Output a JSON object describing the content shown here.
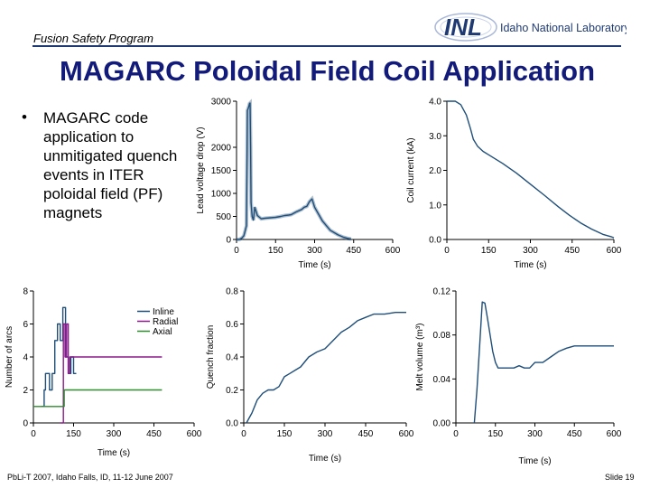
{
  "header": {
    "program": "Fusion Safety Program",
    "logo_text": "Idaho National Laboratory",
    "logo_mark": "INL"
  },
  "title": "MAGARC Poloidal Field Coil Application",
  "bullet": "MAGARC code application to unmitigated quench events in ITER poloidal field (PF) magnets",
  "footer": {
    "citation": "PbLi-T 2007, Idaho Falls, ID, 11-12 June 2007",
    "slide": "Slide 19"
  },
  "colors": {
    "title": "#121a7a",
    "series": "#1f4e79",
    "radial": "#8b1a8b",
    "axial": "#2e8b2e"
  },
  "chart_data": [
    {
      "id": "voltage",
      "type": "line",
      "ylabel": "Lead voltage drop (V)",
      "xlabel": "Time (s)",
      "xlim": [
        0,
        600
      ],
      "ylim": [
        0,
        3000
      ],
      "xticks": [
        "0",
        "150",
        "300",
        "450",
        "600"
      ],
      "yticks": [
        "0",
        "500",
        "1000",
        "1500",
        "2000",
        "3000"
      ],
      "series": [
        {
          "name": "Voltage",
          "color": "#1f4e79",
          "band": true,
          "x": [
            0,
            5,
            10,
            20,
            28,
            32,
            38,
            42,
            45,
            48,
            50,
            52,
            54,
            56,
            60,
            65,
            70,
            80,
            95,
            110,
            130,
            150,
            170,
            185,
            200,
            210,
            230,
            250,
            260,
            270,
            280,
            290,
            300,
            330,
            360,
            390,
            410,
            430,
            440
          ],
          "y": [
            0,
            0,
            0,
            30,
            80,
            160,
            300,
            2800,
            2850,
            2900,
            2950,
            2960,
            2000,
            800,
            500,
            420,
            700,
            520,
            450,
            460,
            470,
            480,
            500,
            520,
            530,
            540,
            600,
            650,
            700,
            720,
            820,
            880,
            700,
            400,
            200,
            100,
            50,
            20,
            10
          ]
        }
      ]
    },
    {
      "id": "current",
      "type": "line",
      "ylabel": "Coil current (kA)",
      "xlabel": "Time (s)",
      "xlim": [
        0,
        600
      ],
      "ylim": [
        0,
        4.0
      ],
      "xticks": [
        "0",
        "150",
        "300",
        "450",
        "600"
      ],
      "yticks": [
        "0.0",
        "1.0",
        "2.0",
        "3.0",
        "4.0"
      ],
      "series": [
        {
          "name": "Current",
          "color": "#1f4e79",
          "x": [
            0,
            30,
            50,
            70,
            85,
            95,
            110,
            130,
            150,
            200,
            250,
            300,
            350,
            400,
            440,
            480,
            520,
            560,
            590,
            600
          ],
          "y": [
            4.0,
            4.0,
            3.9,
            3.6,
            3.2,
            2.9,
            2.7,
            2.55,
            2.45,
            2.2,
            1.92,
            1.6,
            1.28,
            0.95,
            0.7,
            0.48,
            0.3,
            0.15,
            0.08,
            0.05
          ]
        }
      ]
    },
    {
      "id": "arcs",
      "type": "line",
      "ylabel": "Number of arcs",
      "xlabel": "Time (s)",
      "xlim": [
        0,
        600
      ],
      "ylim": [
        0,
        8
      ],
      "xticks": [
        "0",
        "150",
        "300",
        "450",
        "600"
      ],
      "yticks": [
        "0",
        "2",
        "4",
        "6",
        "8"
      ],
      "legend": [
        "Inline",
        "Radial",
        "Axial"
      ],
      "series": [
        {
          "name": "Inline",
          "color": "#1f4e79",
          "step": true,
          "x": [
            30,
            40,
            45,
            55,
            60,
            70,
            80,
            90,
            100,
            110,
            120,
            130,
            140,
            150,
            160
          ],
          "y": [
            1,
            2,
            3,
            3,
            2,
            3,
            5,
            6,
            5,
            7,
            4,
            3,
            4,
            3,
            3
          ]
        },
        {
          "name": "Radial",
          "color": "#8b1a8b",
          "step": true,
          "x": [
            100,
            112,
            118,
            124,
            130,
            136,
            150,
            480
          ],
          "y": [
            0,
            6,
            4,
            6,
            3,
            4,
            4,
            4
          ]
        },
        {
          "name": "Axial",
          "color": "#2e8b2e",
          "step": true,
          "x": [
            0,
            20,
            60,
            110,
            115,
            150,
            290,
            300,
            480
          ],
          "y": [
            1,
            1,
            1,
            1,
            2,
            2,
            2,
            2,
            2
          ]
        }
      ]
    },
    {
      "id": "quench",
      "type": "line",
      "ylabel": "Quench fraction",
      "xlabel": "Time (s)",
      "xlim": [
        0,
        600
      ],
      "ylim": [
        0,
        0.8
      ],
      "xticks": [
        "0",
        "150",
        "300",
        "450",
        "600"
      ],
      "yticks": [
        "0.0",
        "0.2",
        "0.4",
        "0.6",
        "0.8"
      ],
      "series": [
        {
          "name": "Quench fraction",
          "color": "#1f4e79",
          "x": [
            10,
            20,
            30,
            40,
            50,
            70,
            90,
            110,
            130,
            150,
            170,
            190,
            210,
            240,
            270,
            300,
            330,
            360,
            390,
            420,
            450,
            480,
            520,
            560,
            600
          ],
          "y": [
            0.0,
            0.03,
            0.06,
            0.1,
            0.14,
            0.18,
            0.2,
            0.2,
            0.22,
            0.28,
            0.3,
            0.32,
            0.34,
            0.4,
            0.43,
            0.45,
            0.5,
            0.55,
            0.58,
            0.62,
            0.64,
            0.66,
            0.66,
            0.67,
            0.67
          ]
        }
      ]
    },
    {
      "id": "melt",
      "type": "line",
      "ylabel": "Melt volume (m³)",
      "xlabel": "Time (s)",
      "xlim": [
        0,
        600
      ],
      "ylim": [
        0,
        0.12
      ],
      "xticks": [
        "0",
        "150",
        "300",
        "450",
        "600"
      ],
      "yticks": [
        "0.00",
        "0.04",
        "0.08",
        "0.12"
      ],
      "series": [
        {
          "name": "Melt volume",
          "color": "#1f4e79",
          "x": [
            70,
            80,
            90,
            100,
            110,
            120,
            130,
            140,
            150,
            160,
            180,
            200,
            220,
            240,
            260,
            280,
            300,
            330,
            360,
            390,
            420,
            450,
            480,
            520,
            560,
            600
          ],
          "y": [
            0.0,
            0.03,
            0.07,
            0.11,
            0.109,
            0.095,
            0.08,
            0.065,
            0.055,
            0.05,
            0.05,
            0.05,
            0.05,
            0.052,
            0.05,
            0.05,
            0.055,
            0.055,
            0.06,
            0.065,
            0.068,
            0.07,
            0.07,
            0.07,
            0.07,
            0.07
          ]
        }
      ]
    }
  ]
}
